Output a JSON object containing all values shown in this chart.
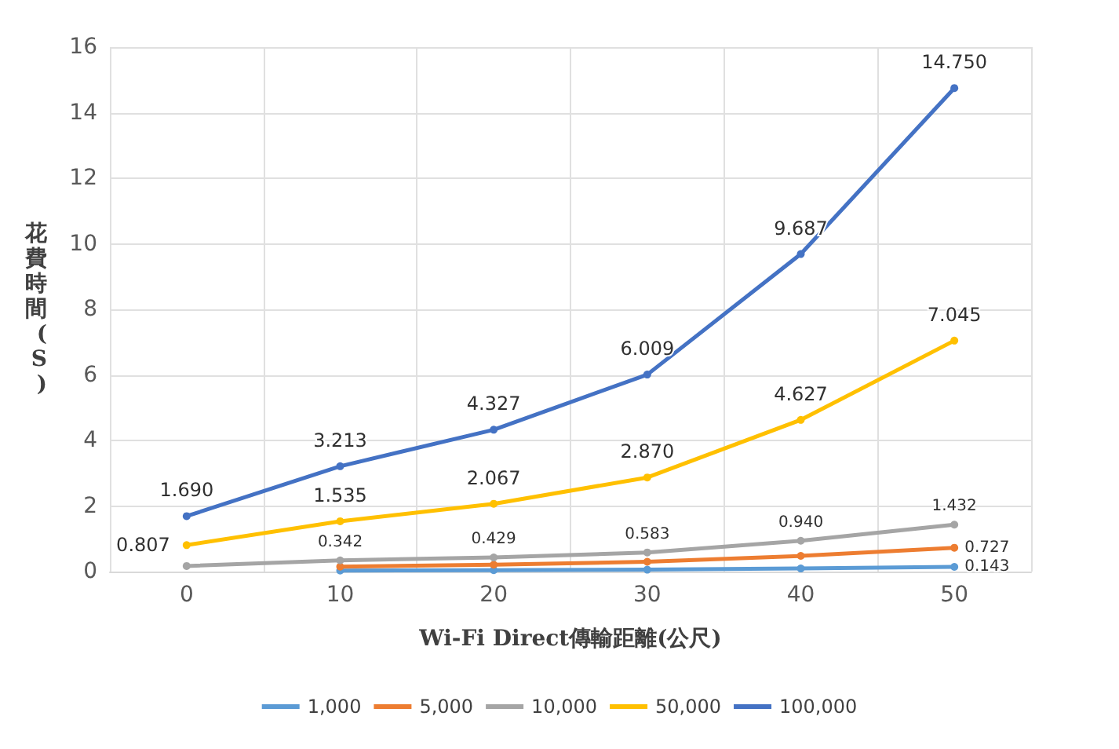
{
  "chart_data": {
    "type": "line",
    "xlabel": "Wi-Fi Direct傳輸距離(公尺)",
    "ylabel": "花費時間(S)",
    "categories": [
      "0",
      "10",
      "20",
      "30",
      "40",
      "50"
    ],
    "ylim": [
      0,
      16
    ],
    "yticks": [
      0,
      2,
      4,
      6,
      8,
      10,
      12,
      14,
      16
    ],
    "grid": true,
    "legend": "bottom",
    "marker": "circle",
    "line_style": "solid",
    "series": [
      {
        "name": "1,000",
        "color": "#5b9bd5",
        "values": [
          null,
          0.031,
          0.042,
          0.058,
          0.094,
          0.143
        ],
        "value_labels": [
          null,
          null,
          null,
          null,
          null,
          "0.143"
        ]
      },
      {
        "name": "5,000",
        "color": "#ed7d31",
        "values": [
          null,
          0.15,
          0.21,
          0.3,
          0.478,
          0.727
        ],
        "value_labels": [
          null,
          null,
          null,
          null,
          null,
          "0.727"
        ]
      },
      {
        "name": "10,000",
        "color": "#a5a5a5",
        "values": [
          0.17,
          0.342,
          0.429,
          0.583,
          0.94,
          1.432
        ],
        "value_labels": [
          null,
          "0.342",
          "0.429",
          "0.583",
          "0.940",
          "1.432"
        ]
      },
      {
        "name": "50,000",
        "color": "#ffc000",
        "values": [
          0.807,
          1.535,
          2.067,
          2.87,
          4.627,
          7.045
        ],
        "value_labels": [
          "0.807",
          "1.535",
          "2.067",
          "2.870",
          "4.627",
          "7.045"
        ]
      },
      {
        "name": "100,000",
        "color": "#4472c4",
        "values": [
          1.69,
          3.213,
          4.327,
          6.009,
          9.687,
          14.75
        ],
        "value_labels": [
          "1.690",
          "3.213",
          "4.327",
          "6.009",
          "9.687",
          "14.750"
        ]
      }
    ]
  }
}
